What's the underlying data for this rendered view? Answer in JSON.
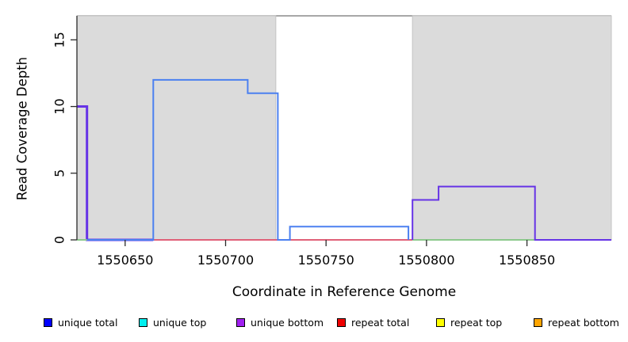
{
  "chart_data": {
    "type": "line",
    "subtype": "step-coverage",
    "title": "",
    "xlabel": "Coordinate in Reference Genome",
    "ylabel": "Read Coverage Depth",
    "xlim": [
      1550626,
      1550892
    ],
    "ylim": [
      0,
      16.8
    ],
    "x_ticks": [
      1550650,
      1550700,
      1550750,
      1550800,
      1550850
    ],
    "y_ticks": [
      0,
      5,
      10,
      15
    ],
    "grid": false,
    "background": "#ffffff",
    "shaded_regions": [
      {
        "name": "repeat-masked-left",
        "x0": 1550626,
        "x1": 1550725,
        "fill": "#dbdbdb",
        "stroke": "#c3c3c3"
      },
      {
        "name": "repeat-masked-right",
        "x0": 1550793,
        "x1": 1550892,
        "fill": "#dbdbdb",
        "stroke": "#c3c3c3"
      }
    ],
    "top_border_color": "#8a8a8a",
    "axis_color": "#2b2b2b",
    "series": [
      {
        "name": "unique-bottom-left-spike",
        "color": "#6633E6",
        "width": 3,
        "points": [
          [
            1550626,
            10
          ],
          [
            1550631,
            10
          ],
          [
            1550631,
            0
          ],
          [
            1550664,
            0
          ]
        ]
      },
      {
        "name": "baseline-green-left",
        "color": "#8CC98C",
        "width": 2,
        "points": [
          [
            1550626,
            0
          ],
          [
            1550631,
            0
          ]
        ]
      },
      {
        "name": "repeat-total-baseline",
        "color": "#E06078",
        "width": 2,
        "points": [
          [
            1550664,
            0
          ],
          [
            1550793,
            0
          ]
        ]
      },
      {
        "name": "baseline-green-right",
        "color": "#8CC98C",
        "width": 2,
        "points": [
          [
            1550793,
            0
          ],
          [
            1550854,
            0
          ]
        ]
      },
      {
        "name": "unique-bottom-right",
        "color": "#6633E6",
        "width": 2,
        "points": [
          [
            1550793,
            0
          ],
          [
            1550793,
            3
          ],
          [
            1550806,
            3
          ],
          [
            1550806,
            4
          ],
          [
            1550854,
            4
          ],
          [
            1550854,
            0
          ],
          [
            1550892,
            0
          ]
        ]
      },
      {
        "name": "unique-total",
        "color": "#4B80F0",
        "width": 2,
        "points": [
          [
            1550631,
            0
          ],
          [
            1550664,
            0
          ],
          [
            1550664,
            12
          ],
          [
            1550711,
            12
          ],
          [
            1550711,
            11
          ],
          [
            1550726,
            11
          ],
          [
            1550726,
            0
          ],
          [
            1550732,
            0
          ],
          [
            1550732,
            1
          ],
          [
            1550791,
            1
          ],
          [
            1550791,
            0
          ]
        ]
      }
    ],
    "legend": {
      "position": "bottom",
      "entries": [
        {
          "label": "unique total",
          "color": "#0000FF"
        },
        {
          "label": "unique top",
          "color": "#00EEEE"
        },
        {
          "label": "unique bottom",
          "color": "#A020F0"
        },
        {
          "label": "repeat total",
          "color": "#EE0000"
        },
        {
          "label": "repeat top",
          "color": "#FFFF00"
        },
        {
          "label": "repeat bottom",
          "color": "#FFA500"
        }
      ]
    }
  }
}
